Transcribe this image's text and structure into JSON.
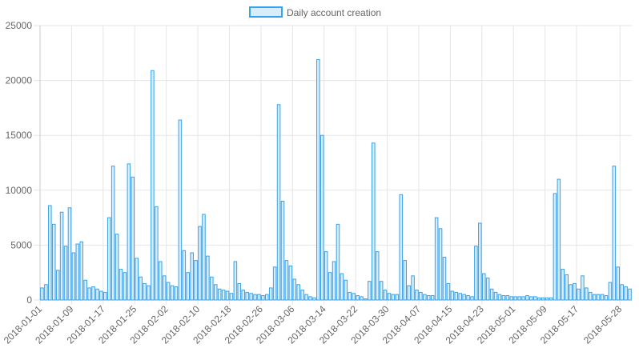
{
  "chart_data": {
    "type": "bar",
    "legend": {
      "label": "Daily account creation",
      "position": "top-center"
    },
    "colors": {
      "bar_fill": "#d8ecfa",
      "bar_stroke": "#36a2eb",
      "grid": "#e5e5e5",
      "text": "#666666"
    },
    "grid": true,
    "ylim": [
      0,
      25000
    ],
    "y_ticks": [
      "0",
      "5000",
      "10000",
      "15000",
      "20000",
      "25000"
    ],
    "x_tick_labels": [
      "2018-01-01",
      "2018-01-09",
      "2018-01-17",
      "2018-01-25",
      "2018-02-02",
      "2018-02-10",
      "2018-02-18",
      "2018-02-26",
      "2018-03-06",
      "2018-03-14",
      "2018-03-22",
      "2018-03-30",
      "2018-04-07",
      "2018-04-15",
      "2018-04-23",
      "2018-05-01",
      "2018-05-09",
      "2018-05-17",
      "2018-05-28"
    ],
    "start_date": "2018-01-01",
    "series": [
      {
        "name": "Daily account creation",
        "values": [
          1100,
          1400,
          8600,
          6900,
          2700,
          8000,
          4900,
          8400,
          4300,
          5100,
          5300,
          1800,
          1100,
          1200,
          1000,
          800,
          700,
          7500,
          12200,
          6000,
          2800,
          2500,
          12400,
          11200,
          3800,
          2100,
          1500,
          1300,
          20900,
          8500,
          3500,
          2200,
          1600,
          1300,
          1200,
          16400,
          4500,
          2500,
          4300,
          3600,
          6700,
          7800,
          4000,
          2100,
          1400,
          1000,
          900,
          800,
          600,
          3500,
          1500,
          900,
          700,
          600,
          500,
          500,
          400,
          500,
          1100,
          3000,
          17800,
          9000,
          3600,
          3100,
          1900,
          1400,
          900,
          500,
          300,
          200,
          21900,
          15000,
          4400,
          2500,
          3500,
          6900,
          2400,
          1800,
          700,
          600,
          400,
          300,
          100,
          1700,
          14300,
          4400,
          1700,
          900,
          600,
          500,
          500,
          9600,
          3600,
          1300,
          2200,
          900,
          700,
          500,
          400,
          400,
          7500,
          6500,
          3900,
          1500,
          800,
          700,
          600,
          500,
          400,
          300,
          4900,
          7000,
          2400,
          2000,
          1000,
          700,
          500,
          400,
          400,
          300,
          300,
          300,
          300,
          400,
          300,
          300,
          200,
          200,
          200,
          200,
          9700,
          11000,
          2800,
          2300,
          1400,
          1500,
          1000,
          2200,
          1100,
          700,
          500,
          500,
          500,
          400,
          1600,
          12200,
          3000,
          1400,
          1200,
          1000
        ]
      }
    ]
  }
}
